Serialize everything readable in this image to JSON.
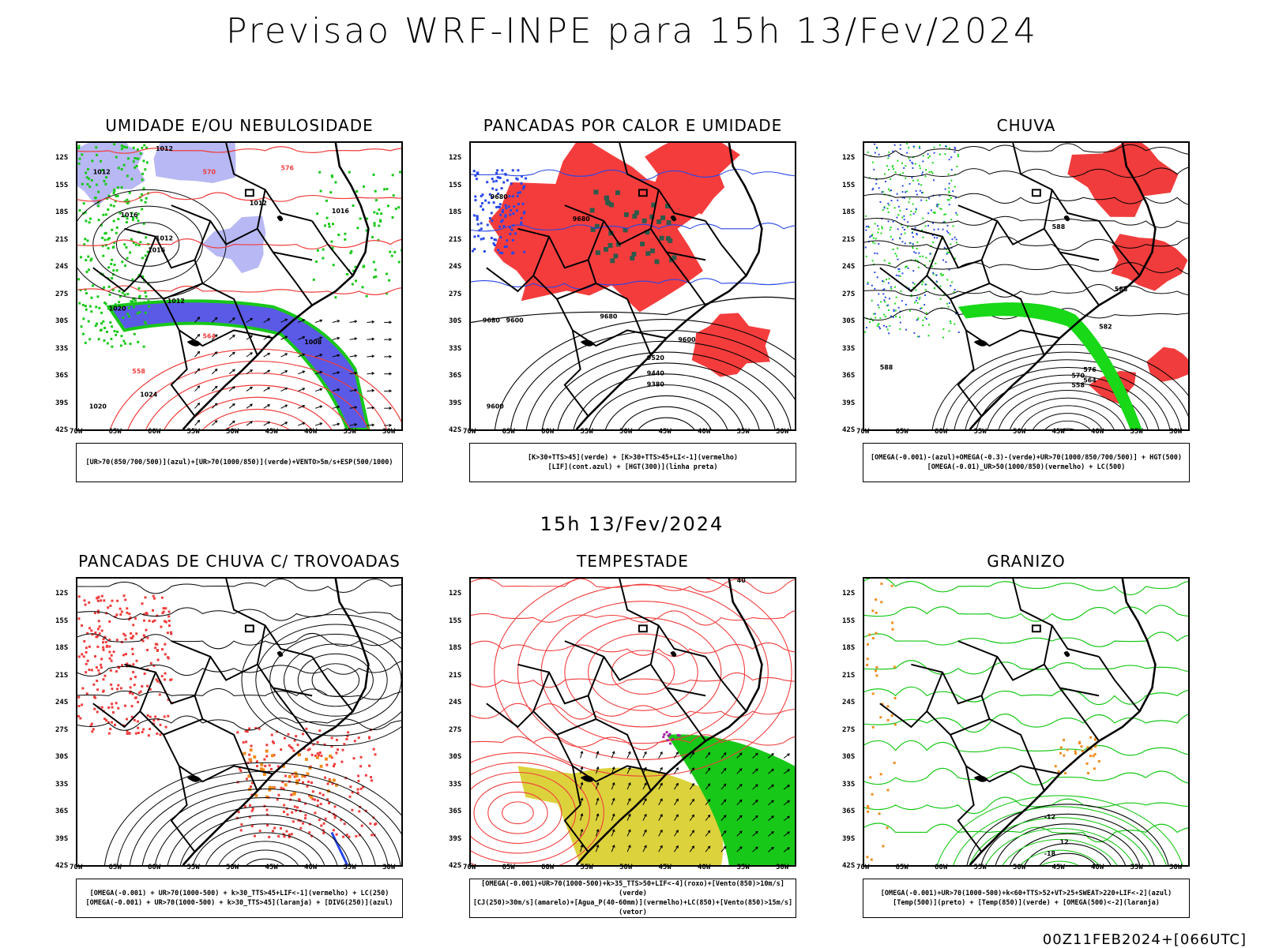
{
  "title": "Previsao WRF-INPE  para 15h 13/Fev/2024",
  "mid_title": "15h 13/Fev/2024",
  "footer": "00Z11FEB2024+[066UTC]",
  "axes": {
    "lat": [
      "12S",
      "15S",
      "18S",
      "21S",
      "24S",
      "27S",
      "30S",
      "33S",
      "36S",
      "39S",
      "42S"
    ],
    "lon": [
      "70W",
      "65W",
      "60W",
      "55W",
      "50W",
      "45W",
      "40W",
      "35W",
      "30W"
    ]
  },
  "panels": [
    {
      "title": "UMIDADE E/OU NEBULOSIDADE",
      "legend": [
        "[UR>70(850/700/500)](azul)+[UR>70(1000/850)](verde)+VENTO>5m/s+ESP(500/1000)"
      ],
      "labels": [
        "1012",
        "1012",
        "1016",
        "1012",
        "1016",
        "1020",
        "1012",
        "1012",
        "1008",
        "1024",
        "1020",
        "576",
        "570",
        "564",
        "558",
        "1016"
      ],
      "colors": {
        "blue": "#5a5ae6",
        "lightblue": "#b8b8f4",
        "green": "#18c818",
        "red": "#f03c3c"
      }
    },
    {
      "title": "PANCADAS POR CALOR E UMIDADE",
      "legend": [
        "[K>30+TTS>45](verde) + [K>30+TTS>45+LI<-1](vermelho)",
        "[LIF](cont.azul) + [HGT(300)](linha preta)"
      ],
      "labels": [
        "9680",
        "9680",
        "9680",
        "9680",
        "9600",
        "9520",
        "9440",
        "9380",
        "9600",
        "9600"
      ],
      "colors": {
        "red": "#f53c3c",
        "darkgreen": "#2e5a4a",
        "blue": "#2846e6"
      }
    },
    {
      "title": "CHUVA",
      "legend": [
        "[OMEGA(-0.001)-(azul)+OMEGA(-0.3)-(verde)+UR>70(1000/850/700/500)] + HGT(500)",
        "[OMEGA(-0.01)_UR>50(1000/850)(vermelho) + LC(500)"
      ],
      "labels": [
        "588",
        "588",
        "582",
        "576",
        "570",
        "564",
        "558",
        "588"
      ],
      "colors": {
        "red": "#f03c3c",
        "green": "#18d818",
        "blue": "#2846e6"
      }
    },
    {
      "title": "PANCADAS DE CHUVA C/ TROVOADAS",
      "legend": [
        "[OMEGA(-0.001) + UR>70(1000-500) + k>30_TTS>45+LIF<-1](vermelho) + LC(250)",
        "[OMEGA(-0.001) + UR>70(1000-500) + k>30_TTS>45](laranja) + [DIVG(250)](azul)"
      ],
      "labels": [],
      "colors": {
        "red": "#f03c3c",
        "orange": "#f08c1e",
        "blue": "#2846e6"
      }
    },
    {
      "title": "TEMPESTADE",
      "legend": [
        "[OMEGA(-0.001)+UR>70(1000-500)+k>35_TTS>50+LIF<-4](roxo)+[Vento(850)>10m/s](verde)",
        "[CJ(250)>30m/s](amarelo)+[Agua_P(40-60mm)](vermelho)+LC(850)+[Vento(850)>15m/s](vetor)"
      ],
      "labels": [
        "40"
      ],
      "colors": {
        "red": "#f03c3c",
        "green": "#18c818",
        "yellow": "#dcd23c",
        "purple": "#a01ea0"
      }
    },
    {
      "title": "GRANIZO",
      "legend": [
        "[OMEGA(-0.001)+UR>70(1000-500)+k<60+TTS>52+VT>25+SWEAT>220+LIF<-2](azul)",
        "[Temp(500)](preto) + [Temp(850)](verde) + [OMEGA(500)<-2](laranja)"
      ],
      "labels": [
        "-12",
        "-18",
        "12"
      ],
      "colors": {
        "green": "#18c818",
        "orange": "#f08c1e",
        "black": "#000000"
      }
    }
  ]
}
